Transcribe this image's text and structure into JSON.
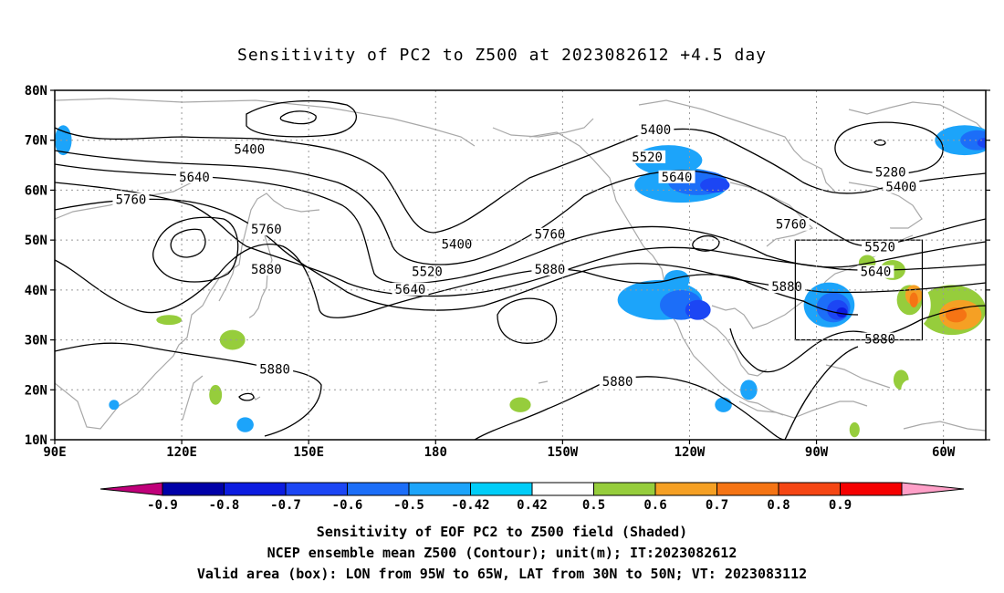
{
  "title": "Sensitivity of PC2 to Z500 at 2023082612 +4.5 day",
  "lat_labels": [
    "80N",
    "70N",
    "60N",
    "50N",
    "40N",
    "30N",
    "20N",
    "10N"
  ],
  "lon_labels": [
    "90E",
    "120E",
    "150E",
    "180",
    "150W",
    "120W",
    "90W",
    "60W"
  ],
  "contour_labels": [
    {
      "text": "5400",
      "lon": -128,
      "lat": 72
    },
    {
      "text": "5400",
      "lon": 136,
      "lat": 68
    },
    {
      "text": "5520",
      "lon": -130,
      "lat": 66.5
    },
    {
      "text": "5640",
      "lon": 123,
      "lat": 62.5
    },
    {
      "text": "5640",
      "lon": -123,
      "lat": 62.5
    },
    {
      "text": "5280",
      "lon": -72.5,
      "lat": 63.5
    },
    {
      "text": "5400",
      "lon": -70,
      "lat": 60.5
    },
    {
      "text": "5760",
      "lon": 108,
      "lat": 58
    },
    {
      "text": "5760",
      "lon": -96,
      "lat": 53
    },
    {
      "text": "5760",
      "lon": 140,
      "lat": 52
    },
    {
      "text": "5400",
      "lon": 185,
      "lat": 49
    },
    {
      "text": "5760",
      "lon": -153,
      "lat": 51
    },
    {
      "text": "5520",
      "lon": -75,
      "lat": 48.5
    },
    {
      "text": "5880",
      "lon": 140,
      "lat": 44
    },
    {
      "text": "5520",
      "lon": 178,
      "lat": 43.5
    },
    {
      "text": "5880",
      "lon": -153,
      "lat": 44
    },
    {
      "text": "5640",
      "lon": -76,
      "lat": 43.5
    },
    {
      "text": "5640",
      "lon": 174,
      "lat": 40
    },
    {
      "text": "5880",
      "lon": -97,
      "lat": 40.5
    },
    {
      "text": "5880",
      "lon": -75,
      "lat": 30
    },
    {
      "text": "5880",
      "lon": 142,
      "lat": 24
    },
    {
      "text": "5880",
      "lon": -137,
      "lat": 21.5
    }
  ],
  "colorbar": {
    "ticks": [
      "-0.9",
      "-0.8",
      "-0.7",
      "-0.6",
      "-0.5",
      "-0.42",
      "0.42",
      "0.5",
      "0.6",
      "0.7",
      "0.8",
      "0.9"
    ],
    "colors": [
      "#c0007a",
      "#0000a8",
      "#0c1ce0",
      "#1c46f4",
      "#1c6ef8",
      "#1ca4fa",
      "#00cdf8",
      "#ffffff",
      "#96cd3c",
      "#f5a024",
      "#f57414",
      "#f54614",
      "#f50000",
      "#ffa0c8"
    ]
  },
  "box": {
    "lon_from": "95W",
    "lon_to": "65W",
    "lat_from": "30N",
    "lat_to": "50N"
  },
  "caption": {
    "line1": "Sensitivity of EOF PC2 to Z500 field (Shaded)",
    "line2": "NCEP ensemble mean Z500 (Contour); unit(m); IT:2023082612",
    "line3": "Valid area (box): LON from 95W to 65W, LAT from 30N to 50N; VT: 2023083112"
  }
}
